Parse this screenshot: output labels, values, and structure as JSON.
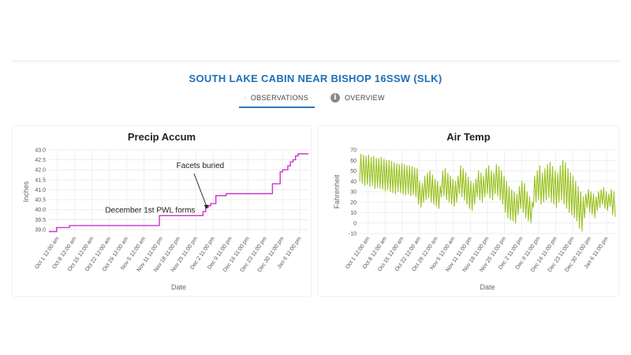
{
  "station": {
    "title": "SOUTH LAKE CABIN NEAR BISHOP 16SSW (SLK)"
  },
  "tabs": [
    {
      "label": "OBSERVATIONS",
      "icon": "trend-line-icon",
      "active": true
    },
    {
      "label": "OVERVIEW",
      "icon": "info-icon",
      "active": false
    }
  ],
  "colors": {
    "accent": "#1f6fb5",
    "tab_underline": "#2a78c2",
    "precip_line": "#cc33cc",
    "temp_line": "#99c21e"
  },
  "chart_data": [
    {
      "type": "line",
      "title": "Precip Accum",
      "xlabel": "Date",
      "ylabel": "Inches",
      "ylim": [
        38.8,
        43.0
      ],
      "yticks": [
        "39.0",
        "39.5",
        "40.0",
        "40.5",
        "41.0",
        "41.5",
        "42.0",
        "42.5",
        "43.0"
      ],
      "xticks": [
        "Oct 1 12:00 am",
        "Oct 8 12:00 am",
        "Oct 15 12:00 am",
        "Oct 22 12:00 am",
        "Oct 29 12:00 am",
        "Nov 5 12:00 am",
        "Nov 11 11:00 pm",
        "Nov 18 11:00 pm",
        "Nov 25 11:00 pm",
        "Dec 2 11:00 pm",
        "Dec 9 11:00 pm",
        "Dec 16 11:00 pm",
        "Dec 23 11:00 pm",
        "Dec 30 11:00 pm",
        "Jan 6 11:00 pm"
      ],
      "grid": true,
      "series": [
        {
          "x": [
            0,
            3,
            3,
            8,
            8,
            22,
            22,
            43,
            43,
            60,
            60,
            61,
            61,
            62,
            62,
            63,
            63,
            65,
            65,
            69,
            69,
            74,
            74,
            87,
            87,
            90,
            90,
            91,
            91,
            93,
            93,
            94,
            94,
            95,
            95,
            96,
            96,
            97,
            97,
            98,
            98,
            101
          ],
          "values": [
            38.9,
            38.9,
            39.1,
            39.1,
            39.2,
            39.2,
            39.2,
            39.2,
            39.7,
            39.7,
            39.9,
            39.9,
            40.1,
            40.1,
            40.2,
            40.2,
            40.3,
            40.3,
            40.7,
            40.7,
            40.8,
            40.8,
            40.8,
            40.8,
            41.3,
            41.3,
            41.9,
            41.9,
            42.0,
            42.0,
            42.2,
            42.2,
            42.4,
            42.4,
            42.5,
            42.5,
            42.7,
            42.7,
            42.8,
            42.8,
            42.8,
            42.8
          ]
        }
      ],
      "annotations": [
        {
          "text": "Facets buried",
          "x": 62,
          "y": 40.0
        },
        {
          "text": "December 1st PWL forms",
          "x": 60,
          "y": 39.7
        }
      ]
    },
    {
      "type": "line",
      "title": "Air Temp",
      "xlabel": "Date",
      "ylabel": "Fahrenheit",
      "ylim": [
        -10,
        70
      ],
      "yticks": [
        "-10",
        "0",
        "10",
        "20",
        "30",
        "40",
        "50",
        "60",
        "70"
      ],
      "xticks": [
        "Oct 1 12:00 am",
        "Oct 8 12:00 am",
        "Oct 15 12:00 am",
        "Oct 22 12:00 am",
        "Oct 29 12:00 am",
        "Nov 5 12:00 am",
        "Nov 11 11:00 pm",
        "Nov 18 11:00 pm",
        "Nov 25 11:00 pm",
        "Dec 2 11:00 pm",
        "Dec 9 11:00 pm",
        "Dec 16 11:00 pm",
        "Dec 23 11:00 pm",
        "Dec 30 11:00 pm",
        "Jan 6 11:00 pm"
      ],
      "grid": true,
      "daily": {
        "highs": [
          66,
          65,
          64,
          65,
          63,
          64,
          62,
          62,
          63,
          61,
          60,
          60,
          59,
          58,
          57,
          56,
          57,
          56,
          55,
          55,
          54,
          53,
          52,
          40,
          38,
          45,
          48,
          50,
          46,
          42,
          40,
          36,
          50,
          52,
          48,
          45,
          42,
          40,
          45,
          55,
          52,
          48,
          44,
          40,
          38,
          42,
          50,
          48,
          45,
          52,
          55,
          50,
          48,
          56,
          54,
          50,
          45,
          40,
          35,
          32,
          30,
          28,
          35,
          40,
          38,
          30,
          25,
          20,
          45,
          50,
          55,
          48,
          52,
          56,
          58,
          54,
          50,
          48,
          55,
          60,
          58,
          52,
          48,
          45,
          40,
          35,
          30,
          25,
          28,
          32,
          30,
          28,
          25,
          30,
          32,
          34,
          30,
          28,
          32,
          30,
          33
        ],
        "lows": [
          40,
          38,
          36,
          37,
          35,
          36,
          33,
          34,
          33,
          32,
          31,
          32,
          30,
          29,
          28,
          30,
          29,
          28,
          27,
          28,
          26,
          27,
          25,
          18,
          15,
          20,
          22,
          24,
          20,
          18,
          16,
          14,
          25,
          26,
          22,
          20,
          18,
          16,
          20,
          28,
          25,
          22,
          18,
          14,
          12,
          18,
          25,
          22,
          20,
          25,
          28,
          24,
          22,
          28,
          26,
          22,
          18,
          10,
          5,
          3,
          2,
          0,
          8,
          14,
          10,
          5,
          2,
          0,
          15,
          20,
          22,
          18,
          20,
          22,
          24,
          20,
          18,
          15,
          20,
          22,
          18,
          14,
          10,
          8,
          5,
          2,
          -5,
          -8,
          5,
          15,
          10,
          8,
          5,
          12,
          15,
          18,
          14,
          12,
          16,
          8,
          6
        ]
      }
    }
  ]
}
